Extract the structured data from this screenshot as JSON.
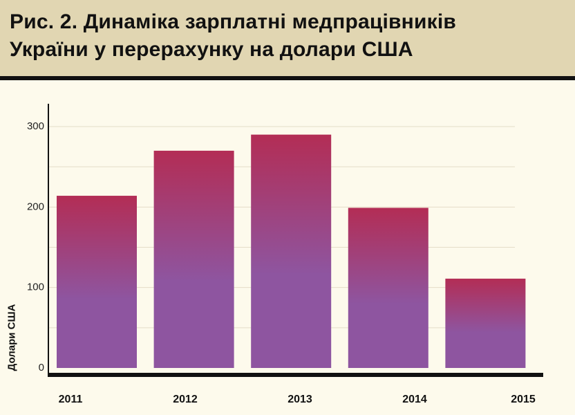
{
  "title_line1": "Рис. 2.  Динаміка зарплатні медпрацівників",
  "title_line2": "України у перерахунку на долари США",
  "chart_data": {
    "type": "bar",
    "title": "Рис. 2.  Динаміка зарплатні медпрацівників України у перерахунку на долари США",
    "categories": [
      "2011",
      "2012",
      "2013",
      "2014",
      "2015"
    ],
    "values": [
      214,
      270,
      290,
      199,
      111
    ],
    "xlabel": "",
    "ylabel": "Долари США",
    "ylim": [
      0,
      320
    ],
    "yticks": [
      0,
      100,
      200,
      300
    ],
    "grid": true,
    "colors": {
      "bar_top": "#b32d55",
      "bar_bottom": "#8e55a0",
      "grid": "#e4ddc8",
      "axis": "#111111"
    }
  }
}
